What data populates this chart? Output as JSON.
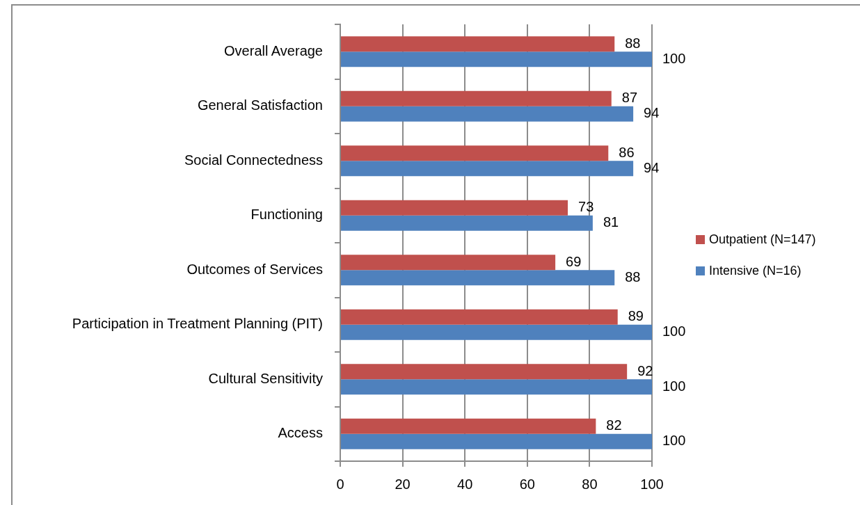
{
  "chart_data": {
    "type": "bar",
    "orientation": "horizontal",
    "categories": [
      "Overall Average",
      "General Satisfaction",
      "Social Connectedness",
      "Functioning",
      "Outcomes of Services",
      "Participation in Treatment Planning (PIT)",
      "Cultural Sensitivity",
      "Access"
    ],
    "series": [
      {
        "name": "Outpatient (N=147)",
        "color": "#c0504d",
        "values": [
          88,
          87,
          86,
          73,
          69,
          89,
          92,
          82
        ]
      },
      {
        "name": "Intensive (N=16)",
        "color": "#4f81bd",
        "values": [
          100,
          94,
          94,
          81,
          88,
          100,
          100,
          100
        ]
      }
    ],
    "xlim": [
      0,
      100
    ],
    "xticks": [
      0,
      20,
      40,
      60,
      80,
      100
    ],
    "grid": "x",
    "legend": "right",
    "data_labels": true
  }
}
